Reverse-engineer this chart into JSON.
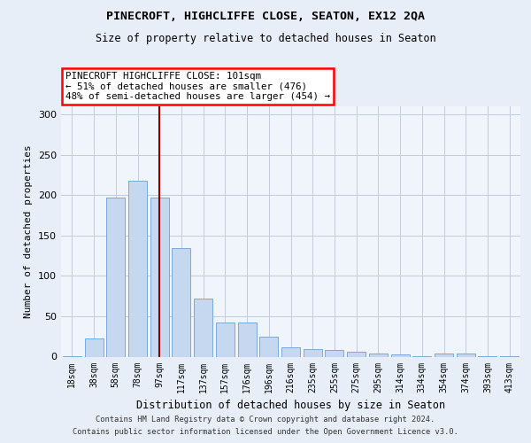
{
  "title1": "PINECROFT, HIGHCLIFFE CLOSE, SEATON, EX12 2QA",
  "title2": "Size of property relative to detached houses in Seaton",
  "xlabel": "Distribution of detached houses by size in Seaton",
  "ylabel": "Number of detached properties",
  "footer1": "Contains HM Land Registry data © Crown copyright and database right 2024.",
  "footer2": "Contains public sector information licensed under the Open Government Licence v3.0.",
  "annotation_line1": "PINECROFT HIGHCLIFFE CLOSE: 101sqm",
  "annotation_line2": "← 51% of detached houses are smaller (476)",
  "annotation_line3": "48% of semi-detached houses are larger (454) →",
  "bar_labels": [
    "18sqm",
    "38sqm",
    "58sqm",
    "78sqm",
    "97sqm",
    "117sqm",
    "137sqm",
    "157sqm",
    "176sqm",
    "196sqm",
    "216sqm",
    "235sqm",
    "255sqm",
    "275sqm",
    "295sqm",
    "314sqm",
    "334sqm",
    "354sqm",
    "374sqm",
    "393sqm",
    "413sqm"
  ],
  "bar_values": [
    1,
    22,
    197,
    218,
    197,
    134,
    72,
    42,
    42,
    25,
    12,
    9,
    8,
    6,
    4,
    3,
    1,
    4,
    4,
    1,
    1
  ],
  "bar_color": "#c5d8f0",
  "bar_edge_color": "#6b9fd4",
  "vline_x_index": 4,
  "vline_color": "#8b0000",
  "bg_color": "#e8eef8",
  "plot_bg_color": "#f0f4fb",
  "grid_color": "#c0ccdf",
  "ylim": [
    0,
    310
  ],
  "yticks": [
    0,
    50,
    100,
    150,
    200,
    250,
    300
  ]
}
